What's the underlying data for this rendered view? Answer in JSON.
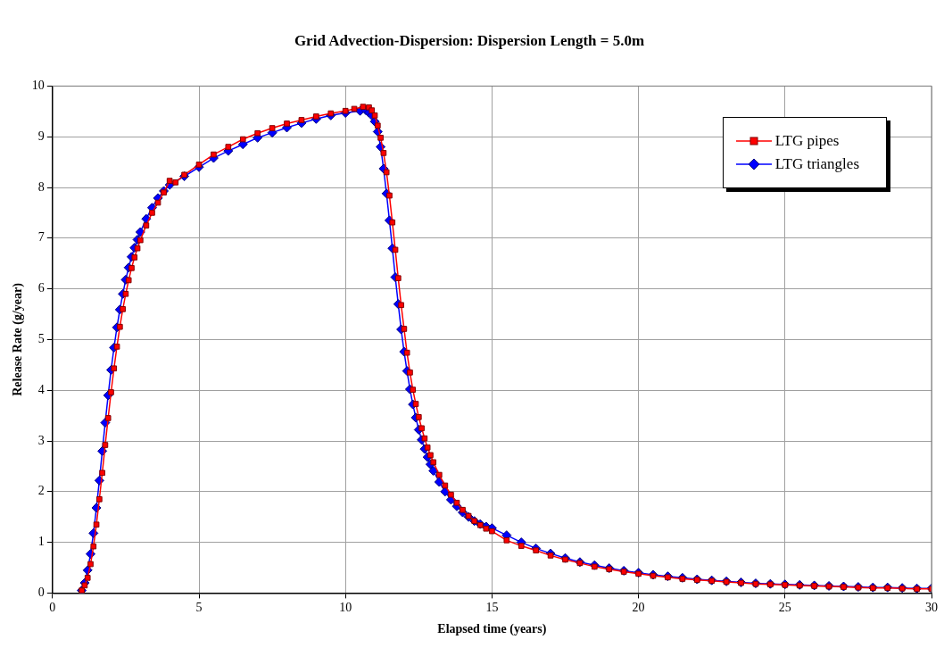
{
  "chart_data": {
    "type": "line",
    "title": "Grid Advection-Dispersion: Dispersion Length = 5.0m",
    "xlabel": "Elapsed time (years)",
    "ylabel": "Release Rate (g/year)",
    "xlim": [
      0,
      30
    ],
    "xticks": [
      0,
      5,
      10,
      15,
      20,
      25,
      30
    ],
    "ylim": [
      0,
      10
    ],
    "yticks": [
      0,
      1,
      2,
      3,
      4,
      5,
      6,
      7,
      8,
      9,
      10
    ],
    "grid": true,
    "legend": "top right",
    "line_style": "solid",
    "series": [
      {
        "name": "LTG pipes",
        "color": "#ff0000",
        "marker": "square",
        "x": [
          1.0,
          1.1,
          1.2,
          1.3,
          1.4,
          1.5,
          1.6,
          1.7,
          1.8,
          1.9,
          2.0,
          2.1,
          2.2,
          2.3,
          2.4,
          2.5,
          2.6,
          2.7,
          2.8,
          2.9,
          3.0,
          3.2,
          3.4,
          3.6,
          3.8,
          4.0,
          4.2,
          4.5,
          5,
          5.5,
          6,
          6.5,
          7,
          7.5,
          8,
          8.5,
          9,
          9.5,
          10,
          10.3,
          10.6,
          10.8,
          10.9,
          11.0,
          11.1,
          11.2,
          11.3,
          11.4,
          11.5,
          11.6,
          11.7,
          11.8,
          11.9,
          12.0,
          12.1,
          12.2,
          12.3,
          12.4,
          12.5,
          12.6,
          12.7,
          12.8,
          12.9,
          13.0,
          13.2,
          13.4,
          13.6,
          13.8,
          14.0,
          14.2,
          14.4,
          14.6,
          14.8,
          15.0,
          15.5,
          16,
          16.5,
          17,
          17.5,
          18,
          18.5,
          19,
          19.5,
          20,
          20.5,
          21,
          21.5,
          22,
          22.5,
          23,
          23.5,
          24,
          24.5,
          25,
          25.5,
          26,
          26.5,
          27,
          27.5,
          28,
          28.5,
          29,
          29.5,
          30
        ],
        "values": [
          0.05,
          0.15,
          0.3,
          0.57,
          0.92,
          1.35,
          1.85,
          2.37,
          2.92,
          3.45,
          3.96,
          4.43,
          4.86,
          5.25,
          5.6,
          5.9,
          6.17,
          6.41,
          6.62,
          6.8,
          6.96,
          7.25,
          7.5,
          7.7,
          7.9,
          8.13,
          8.1,
          8.25,
          8.45,
          8.65,
          8.8,
          8.95,
          9.07,
          9.17,
          9.26,
          9.33,
          9.4,
          9.46,
          9.51,
          9.55,
          9.59,
          9.58,
          9.52,
          9.42,
          9.22,
          8.98,
          8.68,
          8.3,
          7.84,
          7.31,
          6.77,
          6.21,
          5.68,
          5.21,
          4.74,
          4.35,
          4.01,
          3.73,
          3.47,
          3.25,
          3.05,
          2.87,
          2.72,
          2.58,
          2.33,
          2.12,
          1.94,
          1.78,
          1.64,
          1.52,
          1.42,
          1.34,
          1.27,
          1.22,
          1.04,
          0.93,
          0.84,
          0.74,
          0.66,
          0.59,
          0.52,
          0.47,
          0.42,
          0.38,
          0.34,
          0.31,
          0.28,
          0.26,
          0.24,
          0.22,
          0.2,
          0.18,
          0.17,
          0.16,
          0.15,
          0.14,
          0.13,
          0.12,
          0.11,
          0.1,
          0.1,
          0.09,
          0.08,
          0.08
        ]
      },
      {
        "name": "LTG triangles",
        "color": "#0000ff",
        "marker": "diamond",
        "x": [
          1.0,
          1.1,
          1.2,
          1.3,
          1.4,
          1.5,
          1.6,
          1.7,
          1.8,
          1.9,
          2.0,
          2.1,
          2.2,
          2.3,
          2.4,
          2.5,
          2.6,
          2.7,
          2.8,
          2.9,
          3.0,
          3.2,
          3.4,
          3.6,
          3.8,
          4.0,
          4.5,
          5,
          5.5,
          6,
          6.5,
          7,
          7.5,
          8,
          8.5,
          9,
          9.5,
          10,
          10.5,
          10.7,
          10.8,
          10.9,
          11.0,
          11.1,
          11.2,
          11.3,
          11.4,
          11.5,
          11.6,
          11.7,
          11.8,
          11.9,
          12.0,
          12.1,
          12.2,
          12.3,
          12.4,
          12.5,
          12.6,
          12.7,
          12.8,
          12.9,
          13.0,
          13.2,
          13.4,
          13.6,
          13.8,
          14.0,
          14.2,
          14.4,
          14.6,
          14.8,
          15.0,
          15.5,
          16,
          16.5,
          17,
          17.5,
          18,
          18.5,
          19,
          19.5,
          20,
          20.5,
          21,
          21.5,
          22,
          22.5,
          23,
          23.5,
          24,
          24.5,
          25,
          25.5,
          26,
          26.5,
          27,
          27.5,
          28,
          28.5,
          29,
          29.5,
          30
        ],
        "values": [
          0.05,
          0.2,
          0.45,
          0.77,
          1.18,
          1.68,
          2.22,
          2.8,
          3.36,
          3.9,
          4.4,
          4.84,
          5.24,
          5.59,
          5.9,
          6.18,
          6.42,
          6.63,
          6.81,
          6.97,
          7.12,
          7.38,
          7.6,
          7.79,
          7.93,
          8.05,
          8.22,
          8.4,
          8.58,
          8.72,
          8.85,
          8.98,
          9.08,
          9.18,
          9.27,
          9.35,
          9.42,
          9.47,
          9.51,
          9.52,
          9.48,
          9.42,
          9.3,
          9.1,
          8.8,
          8.37,
          7.88,
          7.35,
          6.8,
          6.23,
          5.7,
          5.2,
          4.76,
          4.38,
          4.02,
          3.72,
          3.46,
          3.22,
          3.02,
          2.84,
          2.68,
          2.54,
          2.41,
          2.19,
          2.0,
          1.84,
          1.71,
          1.59,
          1.5,
          1.42,
          1.36,
          1.31,
          1.28,
          1.14,
          1.0,
          0.88,
          0.78,
          0.69,
          0.61,
          0.55,
          0.49,
          0.44,
          0.4,
          0.36,
          0.33,
          0.3,
          0.27,
          0.25,
          0.23,
          0.21,
          0.19,
          0.18,
          0.17,
          0.16,
          0.15,
          0.14,
          0.13,
          0.12,
          0.11,
          0.11,
          0.1,
          0.09,
          0.09
        ]
      }
    ]
  }
}
